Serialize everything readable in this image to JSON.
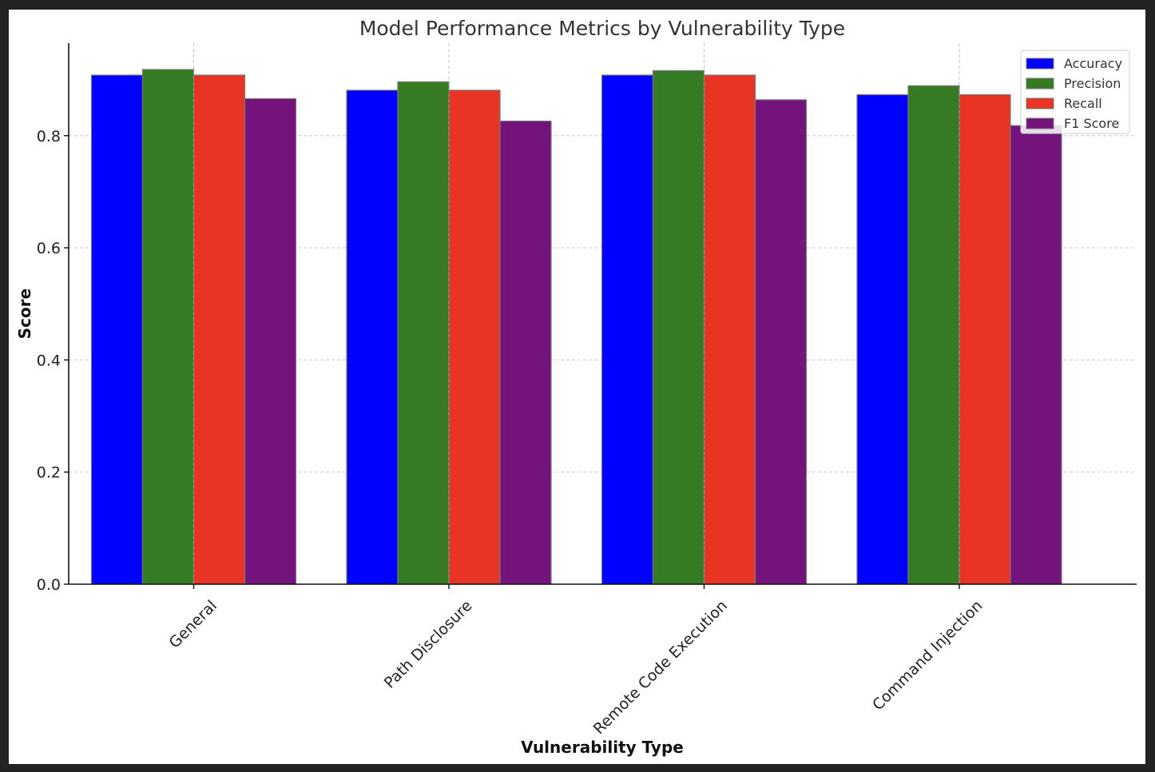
{
  "chart_data": {
    "type": "bar",
    "title": "Model Performance Metrics by Vulnerability Type",
    "xlabel": "Vulnerability Type",
    "ylabel": "Score",
    "categories": [
      "General",
      "Path Disclosure",
      "Remote Code Execution",
      "Command Injection"
    ],
    "series": [
      {
        "name": "Accuracy",
        "color": "#0000ff",
        "values": [
          0.908,
          0.881,
          0.908,
          0.873
        ]
      },
      {
        "name": "Precision",
        "color": "#367b23",
        "values": [
          0.918,
          0.896,
          0.916,
          0.889
        ]
      },
      {
        "name": "Recall",
        "color": "#e93323",
        "values": [
          0.908,
          0.881,
          0.908,
          0.873
        ]
      },
      {
        "name": "F1 Score",
        "color": "#74137b",
        "values": [
          0.866,
          0.826,
          0.864,
          0.818
        ]
      }
    ],
    "ylim": [
      0,
      0.965
    ],
    "yticks": [
      0.0,
      0.2,
      0.4,
      0.6,
      0.8
    ],
    "ytick_labels": [
      "0.0",
      "0.2",
      "0.4",
      "0.6",
      "0.8"
    ],
    "grid": true,
    "legend_position": "top-right"
  }
}
